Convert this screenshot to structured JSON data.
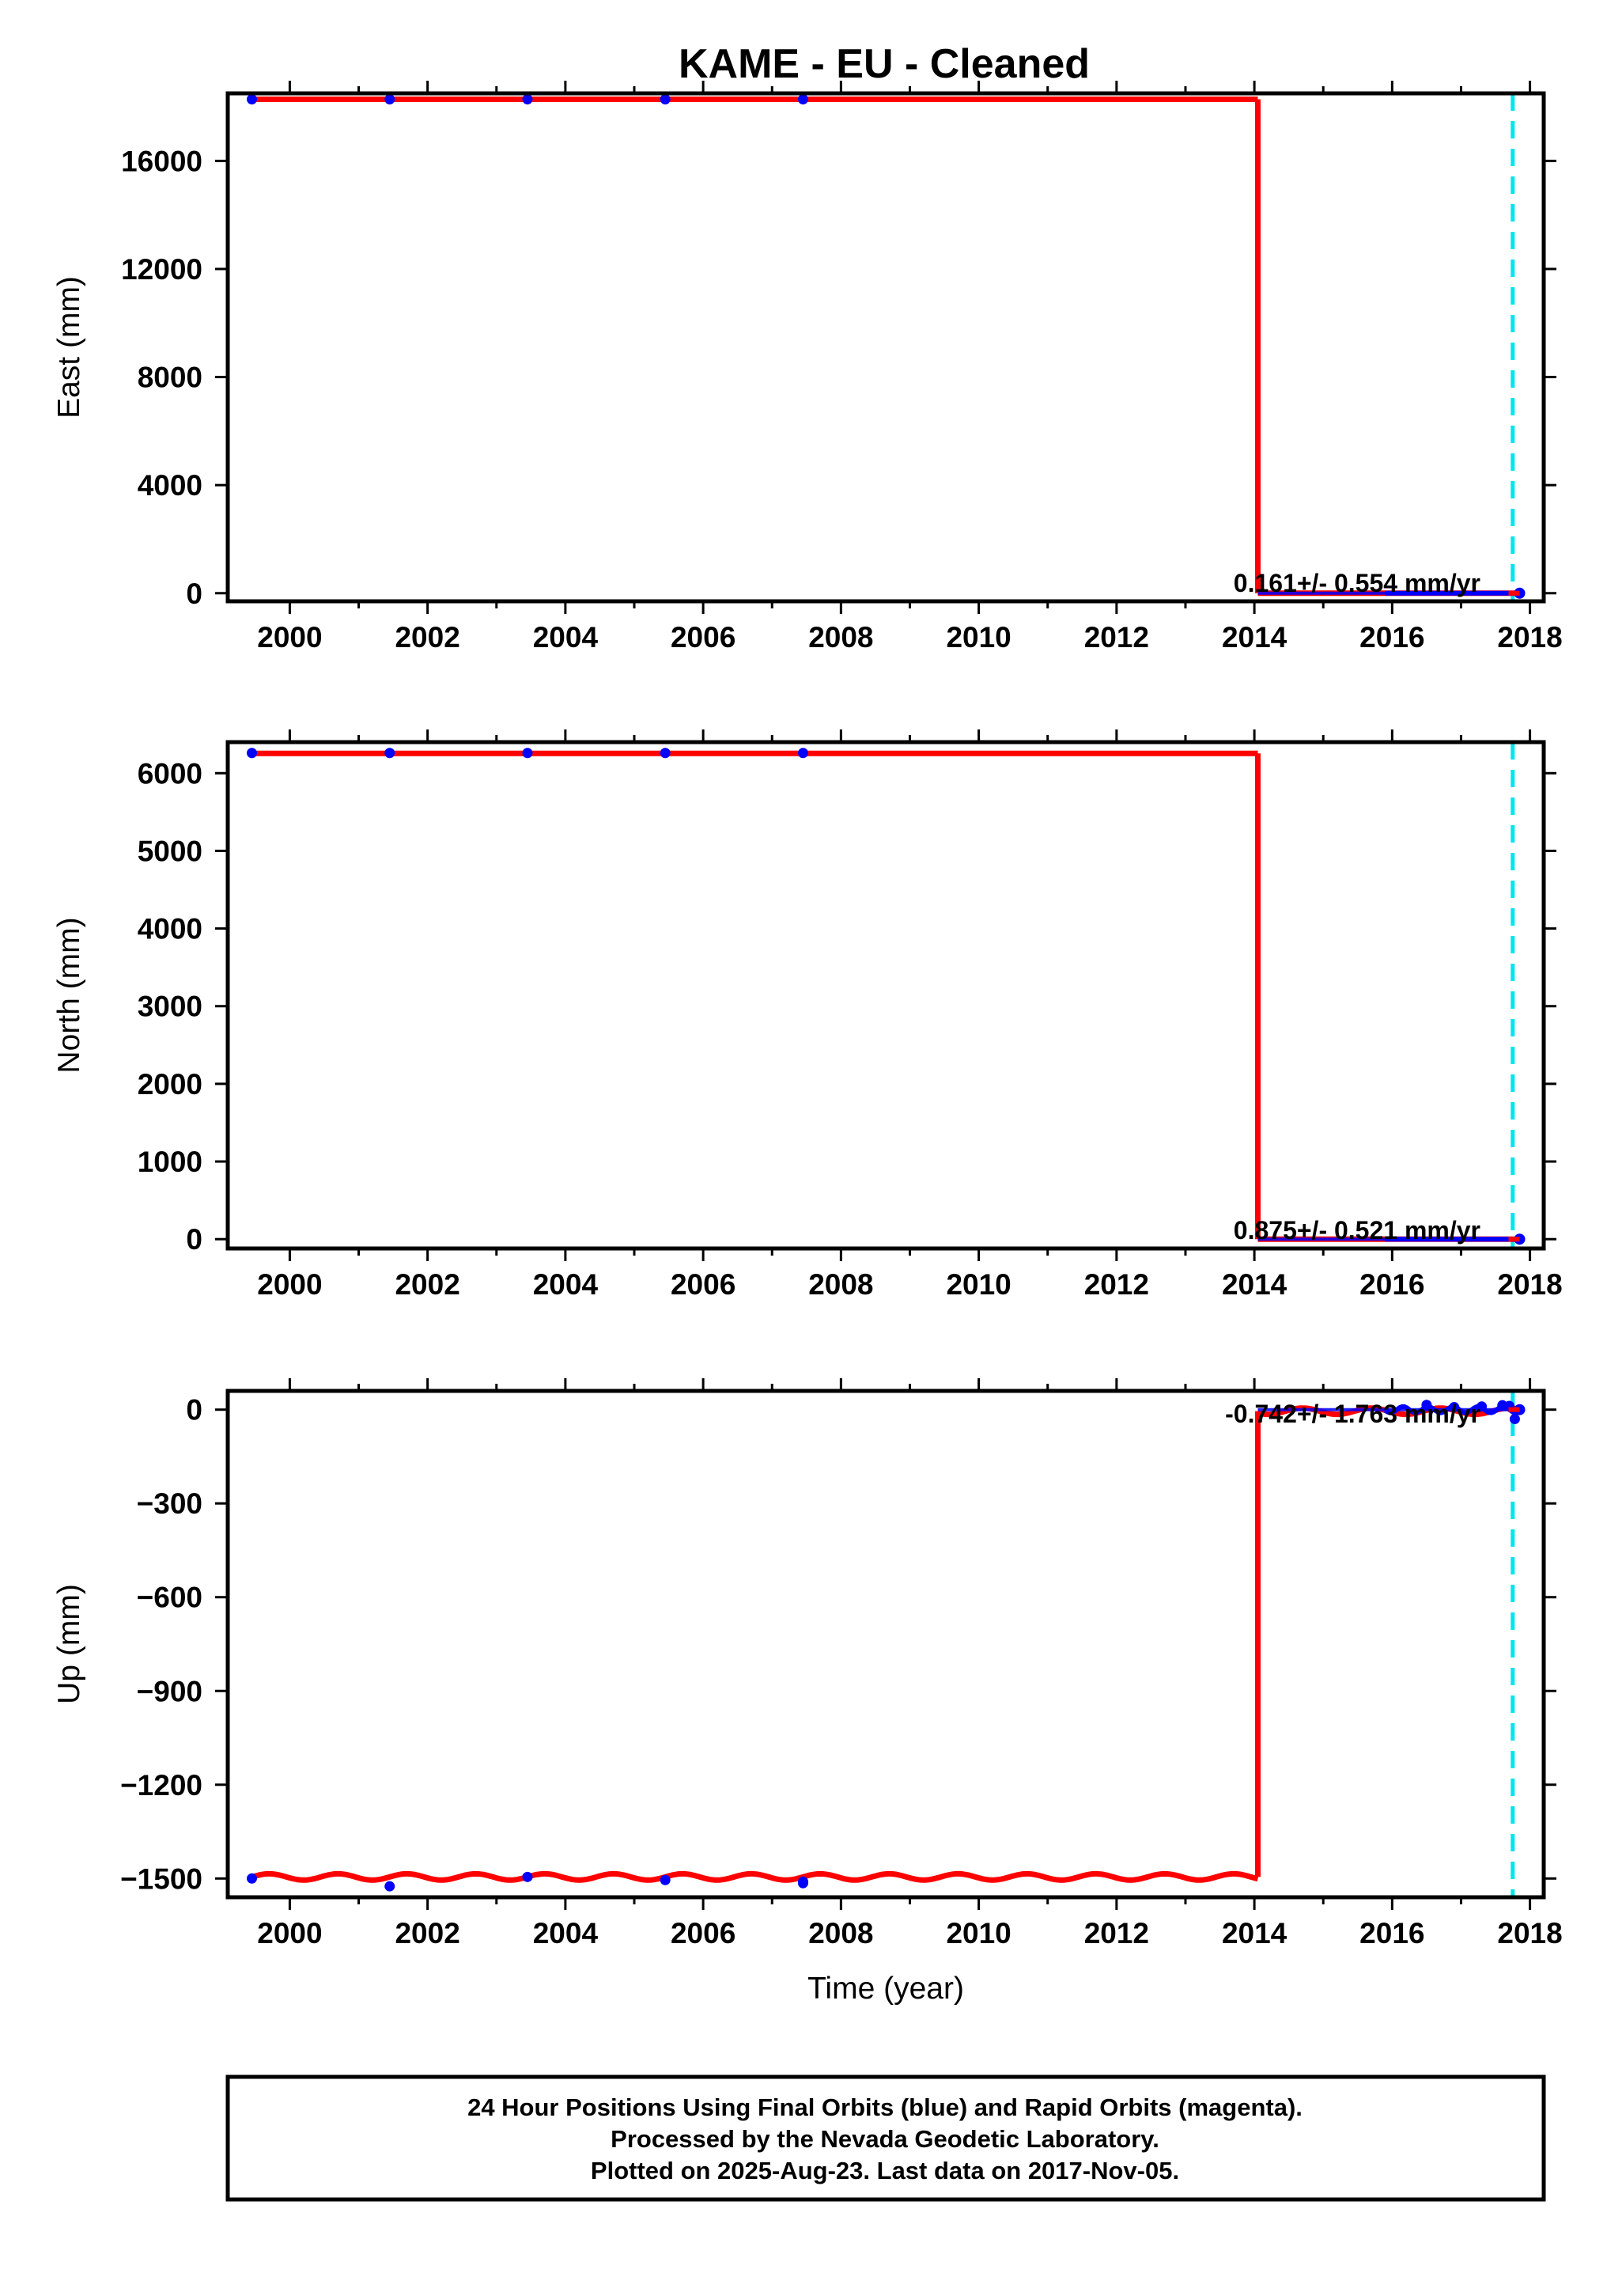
{
  "title": "KAME  - EU - Cleaned",
  "colors": {
    "final_orbits": "#0000ff",
    "model": "#ff0000",
    "equipment_change": "#00e5ee",
    "frame": "#000000"
  },
  "footer": {
    "line1": "24 Hour Positions Using Final Orbits (blue) and Rapid Orbits (magenta).",
    "line2": "Processed by the Nevada Geodetic Laboratory.",
    "line3": "Plotted on 2025-Aug-23. Last data on 2017-Nov-05."
  },
  "chart_data": [
    {
      "type": "scatter",
      "panel": "east",
      "ylabel": "East (mm)",
      "xlabel": "",
      "xlim": [
        1999.1,
        2018.2
      ],
      "ylim": [
        -300,
        18500
      ],
      "xticks": [
        2000,
        2002,
        2004,
        2006,
        2008,
        2010,
        2012,
        2014,
        2016,
        2018
      ],
      "yticks": [
        0,
        4000,
        8000,
        12000,
        16000
      ],
      "rate_label": "0.161+/- 0.554 mm/yr",
      "equipment_change_x": 2017.75,
      "series": [
        {
          "x": [
            1999.45,
            2001.45,
            2003.45,
            2005.45,
            2007.45
          ],
          "y": [
            18280,
            18280,
            18280,
            18280,
            18280
          ]
        }
      ],
      "recent_cluster": {
        "x_range": [
          2014.05,
          2017.85
        ],
        "y": 0
      },
      "model": {
        "segments": [
          {
            "x": [
              1999.45,
              2014.05
            ],
            "y": [
              18280,
              18280
            ]
          },
          {
            "x": [
              2014.05,
              2017.85
            ],
            "y": [
              0,
              0
            ]
          }
        ]
      }
    },
    {
      "type": "scatter",
      "panel": "north",
      "ylabel": "North (mm)",
      "xlabel": "",
      "xlim": [
        1999.1,
        2018.2
      ],
      "ylim": [
        -120,
        6400
      ],
      "xticks": [
        2000,
        2002,
        2004,
        2006,
        2008,
        2010,
        2012,
        2014,
        2016,
        2018
      ],
      "yticks": [
        0,
        1000,
        2000,
        3000,
        4000,
        5000,
        6000
      ],
      "rate_label": "0.875+/- 0.521 mm/yr",
      "equipment_change_x": 2017.75,
      "series": [
        {
          "x": [
            1999.45,
            2001.45,
            2003.45,
            2005.45,
            2007.45
          ],
          "y": [
            6260,
            6260,
            6260,
            6260,
            6260
          ]
        }
      ],
      "recent_cluster": {
        "x_range": [
          2014.05,
          2017.85
        ],
        "y": 0
      },
      "model": {
        "segments": [
          {
            "x": [
              1999.45,
              2014.05
            ],
            "y": [
              6255,
              6255
            ]
          },
          {
            "x": [
              2014.05,
              2017.85
            ],
            "y": [
              0,
              0
            ]
          }
        ]
      }
    },
    {
      "type": "scatter",
      "panel": "up",
      "ylabel": "Up (mm)",
      "xlabel": "Time (year)",
      "xlim": [
        1999.1,
        2018.2
      ],
      "ylim": [
        -1560,
        60
      ],
      "xticks": [
        2000,
        2002,
        2004,
        2006,
        2008,
        2010,
        2012,
        2014,
        2016,
        2018
      ],
      "yticks": [
        0,
        -300,
        -600,
        -900,
        -1200,
        -1500
      ],
      "ytick_labels": [
        "0",
        "−300",
        "−600",
        "−900",
        "−1200",
        "−1500"
      ],
      "rate_label": "-0.742+/- 1.763 mm/yr",
      "equipment_change_x": 2017.75,
      "series": [
        {
          "x": [
            1999.45,
            2001.45,
            2003.45,
            2005.45,
            2007.45,
            2007.45,
            2016.5,
            2016.9,
            2017.3,
            2017.6,
            2017.7,
            2017.78
          ],
          "y": [
            -1500,
            -1525,
            -1495,
            -1505,
            -1510,
            -1515,
            15,
            8,
            10,
            14,
            12,
            -30
          ]
        }
      ],
      "recent_cluster": {
        "x_range": [
          2014.05,
          2017.85
        ],
        "y": 0
      },
      "model": {
        "seasonal_amplitude": 10,
        "segments": [
          {
            "x": [
              1999.45,
              2014.05
            ],
            "y": [
              -1495,
              -1495
            ]
          },
          {
            "x": [
              2014.05,
              2017.85
            ],
            "y": [
              -5,
              -5
            ]
          }
        ]
      }
    }
  ]
}
